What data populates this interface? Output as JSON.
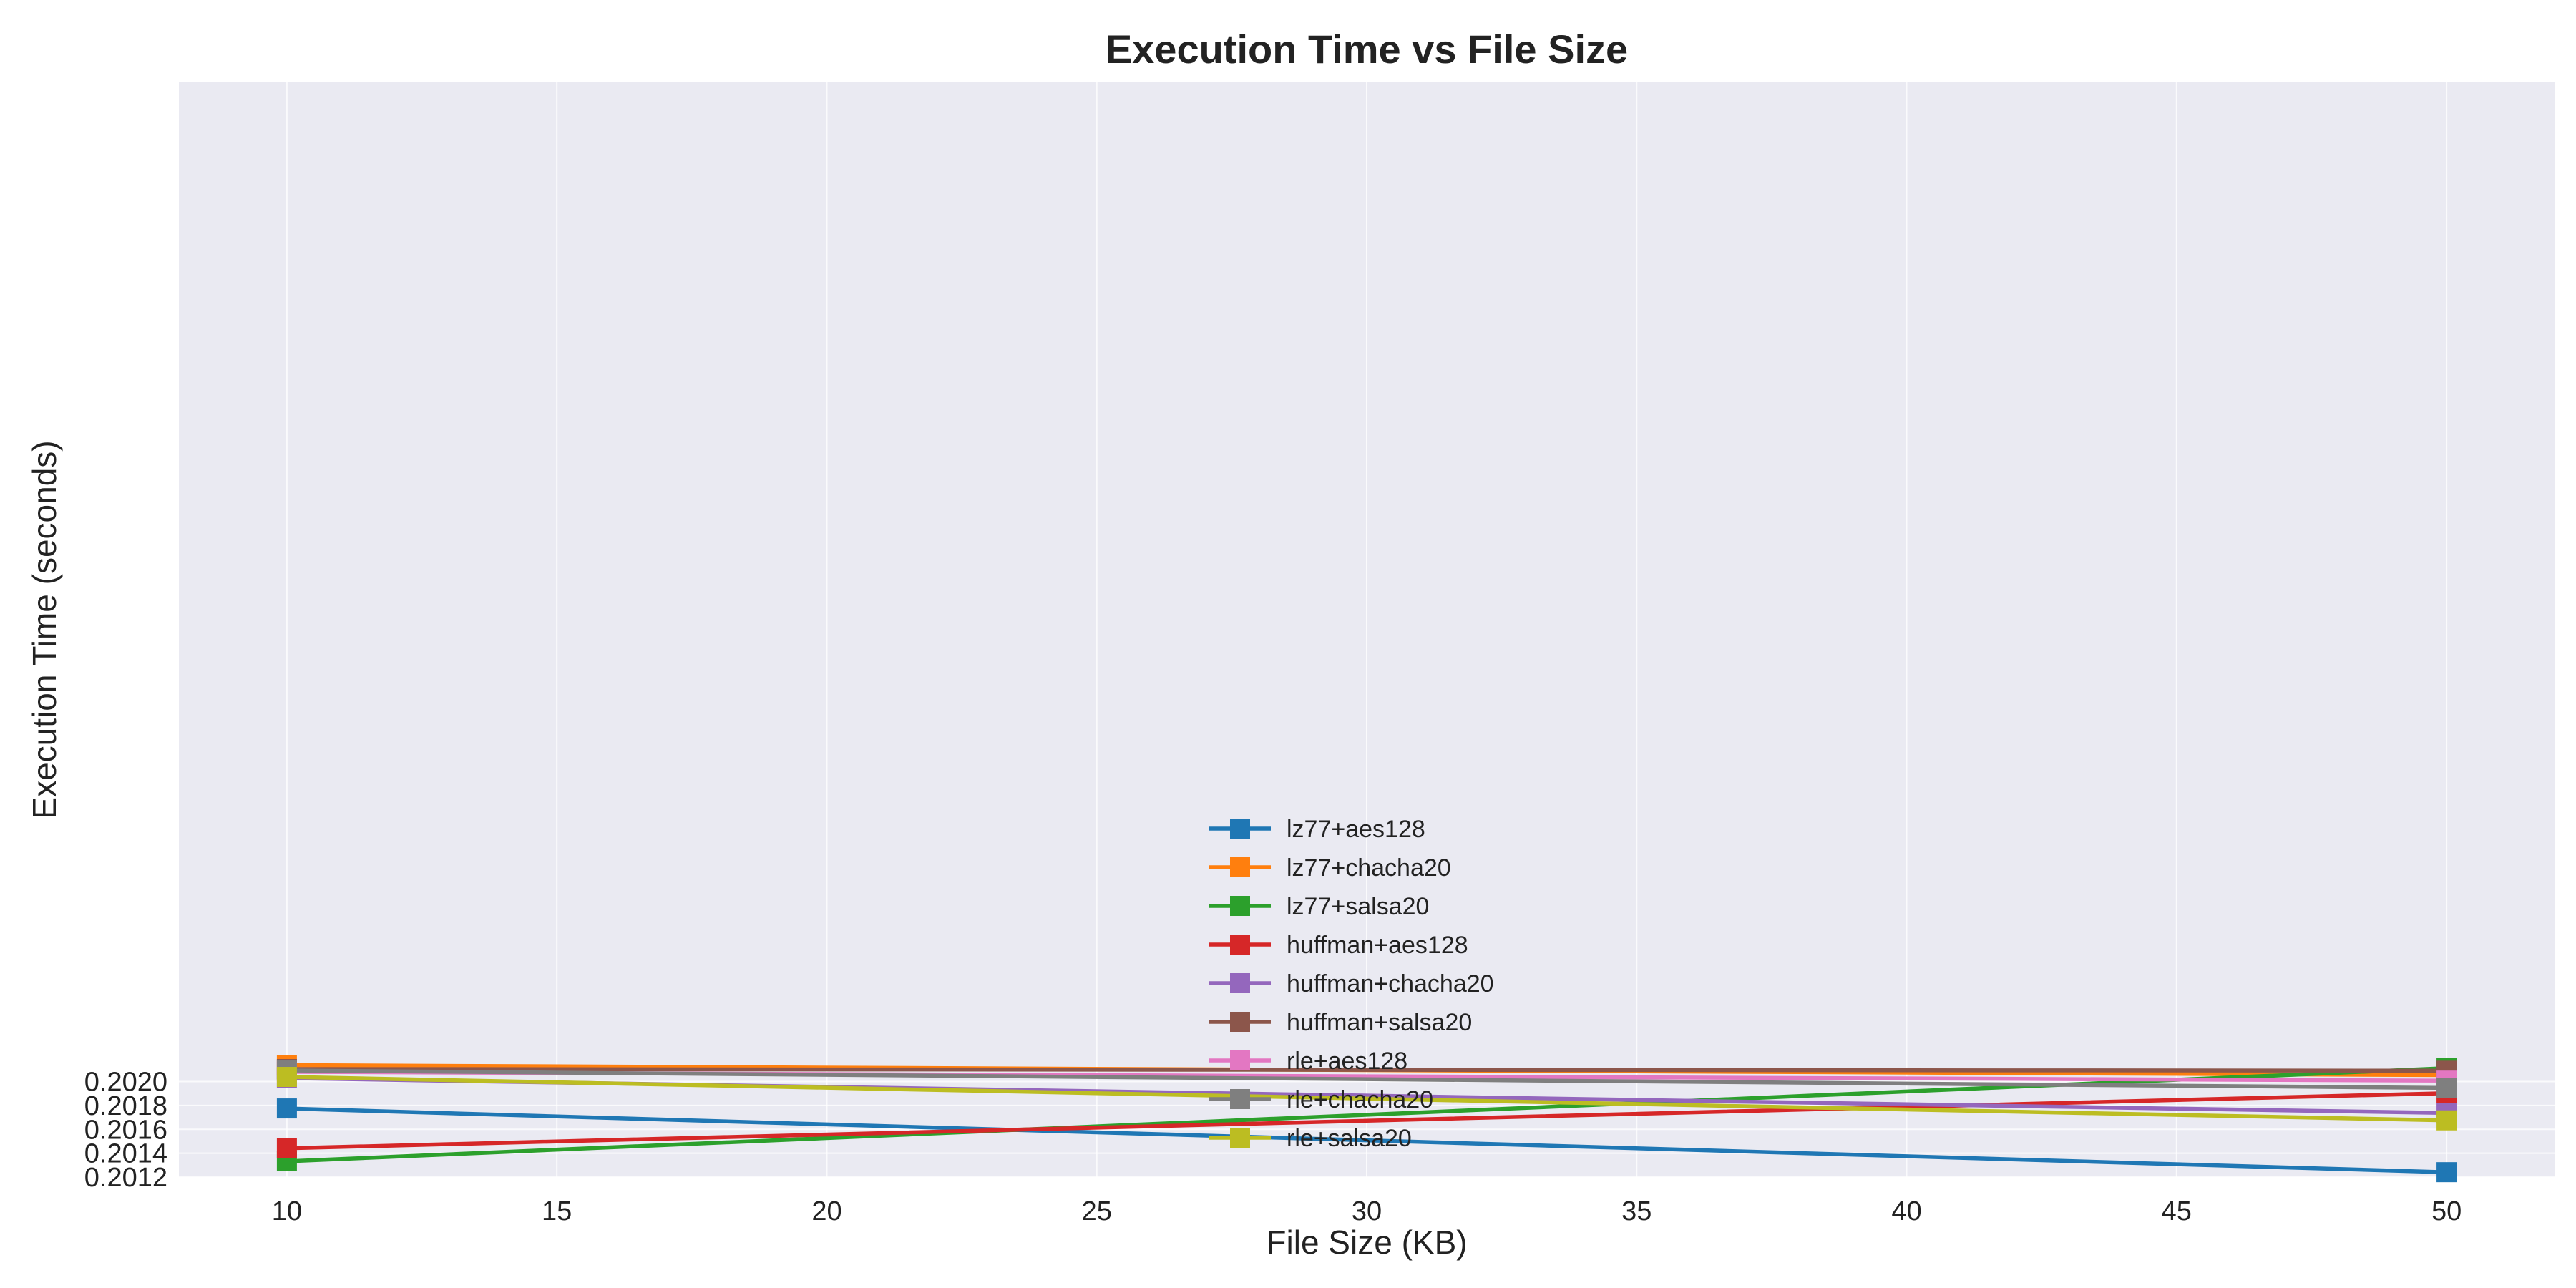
{
  "chart_data": {
    "type": "line",
    "title": "Execution Time vs File Size",
    "xlabel": "File Size (KB)",
    "ylabel": "Execution Time (seconds)",
    "x": [
      10,
      50
    ],
    "xlim": [
      8,
      52
    ],
    "ylim": [
      0.2012,
      0.21037
    ],
    "xticks": [
      10,
      15,
      20,
      25,
      30,
      35,
      40,
      45,
      50
    ],
    "yticks": [
      0.2012,
      0.2014,
      0.2016,
      0.2018,
      0.202
    ],
    "ytick_labels": [
      "0.2012",
      "0.2014",
      "0.2016",
      "0.2018",
      "0.2020"
    ],
    "grid": true,
    "legend_position": "lower-center",
    "marker": "square",
    "series": [
      {
        "name": "lz77+aes128",
        "color": "#1f77b4",
        "values": [
          0.201775,
          0.201241
        ]
      },
      {
        "name": "lz77+chacha20",
        "color": "#ff7f0e",
        "values": [
          0.202138,
          0.202054
        ]
      },
      {
        "name": "lz77+salsa20",
        "color": "#2ca02c",
        "values": [
          0.201332,
          0.202112
        ]
      },
      {
        "name": "huffman+aes128",
        "color": "#d62728",
        "values": [
          0.201441,
          0.201903
        ]
      },
      {
        "name": "huffman+chacha20",
        "color": "#9467bd",
        "values": [
          0.202028,
          0.201737
        ]
      },
      {
        "name": "huffman+salsa20",
        "color": "#8c564b",
        "values": [
          0.202105,
          0.202091
        ]
      },
      {
        "name": "rle+aes128",
        "color": "#e377c2",
        "values": [
          0.202081,
          0.202008
        ]
      },
      {
        "name": "rle+chacha20",
        "color": "#7f7f7f",
        "values": [
          0.202093,
          0.201947
        ]
      },
      {
        "name": "rle+salsa20",
        "color": "#bcbd22",
        "values": [
          0.202039,
          0.201675
        ]
      }
    ]
  }
}
